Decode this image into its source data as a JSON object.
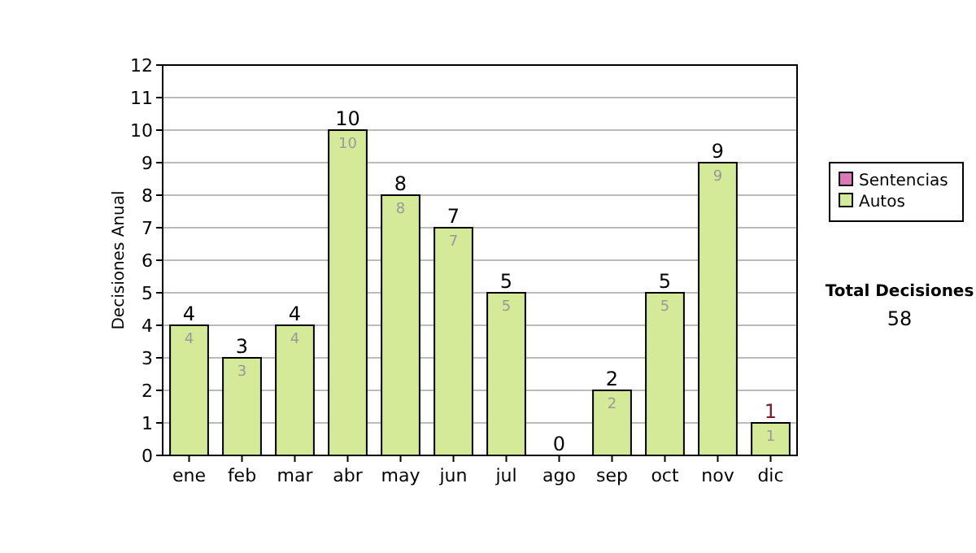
{
  "chart_data": {
    "type": "bar",
    "ylabel": "Decisiones Anual",
    "categories": [
      "ene",
      "feb",
      "mar",
      "abr",
      "may",
      "jun",
      "jul",
      "ago",
      "sep",
      "oct",
      "nov",
      "dic"
    ],
    "stacked": true,
    "series": [
      {
        "name": "Sentencias",
        "color": "#dd77bb",
        "values": [
          0,
          0,
          0,
          0,
          0,
          0,
          0,
          0,
          0,
          0,
          0,
          0
        ]
      },
      {
        "name": "Autos",
        "color": "#d4ea98",
        "values": [
          4,
          3,
          4,
          10,
          8,
          7,
          5,
          0,
          2,
          5,
          9,
          1
        ],
        "value_labels": [
          "4",
          "3",
          "4",
          "10",
          "8",
          "7",
          "5",
          null,
          "2",
          "5",
          "9",
          "1"
        ]
      }
    ],
    "totals": [
      "4",
      "3",
      "4",
      "10",
      "8",
      "7",
      "5",
      "0",
      "2",
      "5",
      "9",
      "1"
    ],
    "ylim": [
      0,
      12
    ],
    "yticks": [
      0,
      1,
      2,
      3,
      4,
      5,
      6,
      7,
      8,
      9,
      10,
      11,
      12
    ],
    "grid": "y",
    "legend": "right",
    "annotations": [
      "Total Decisiones",
      "58"
    ]
  }
}
